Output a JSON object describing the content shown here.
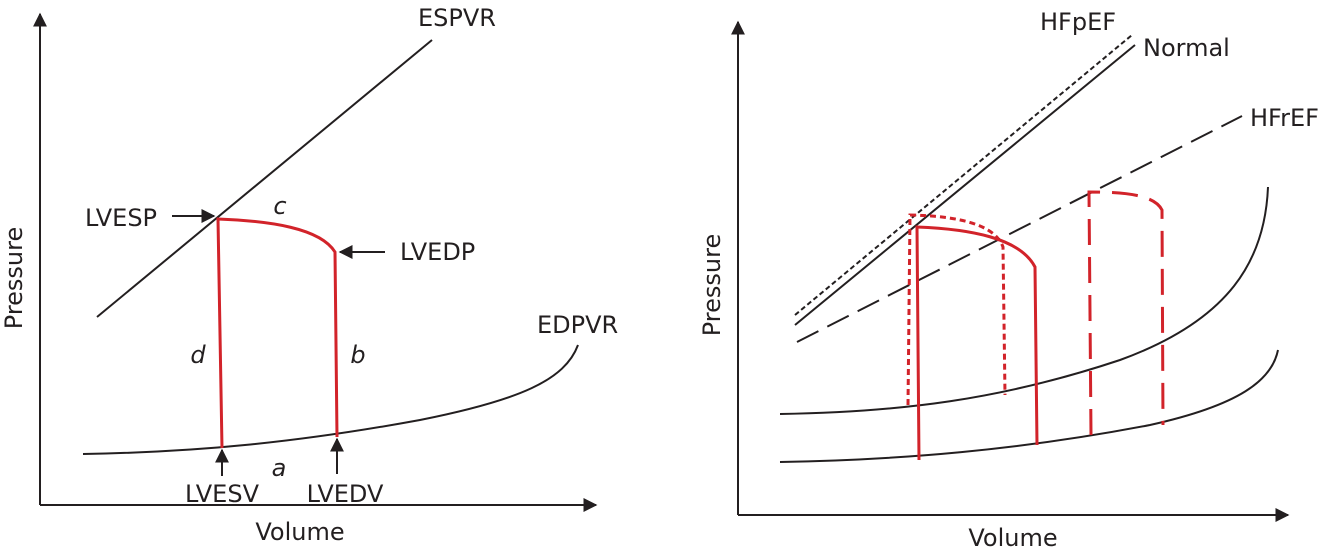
{
  "left": {
    "y_label": "Pressure",
    "x_label": "Volume",
    "espvr": "ESPVR",
    "edpvr": "EDPVR",
    "lvesp": "LVESP",
    "lvedp": "LVEDP",
    "lvesv": "LVESV",
    "lvedv": "LVEDV",
    "segments": {
      "a": "a",
      "b": "b",
      "c": "c",
      "d": "d"
    }
  },
  "right": {
    "y_label": "Pressure",
    "x_label": "Volume",
    "hfpef": "HFpEF",
    "normal": "Normal",
    "hfref": "HFrEF"
  }
}
